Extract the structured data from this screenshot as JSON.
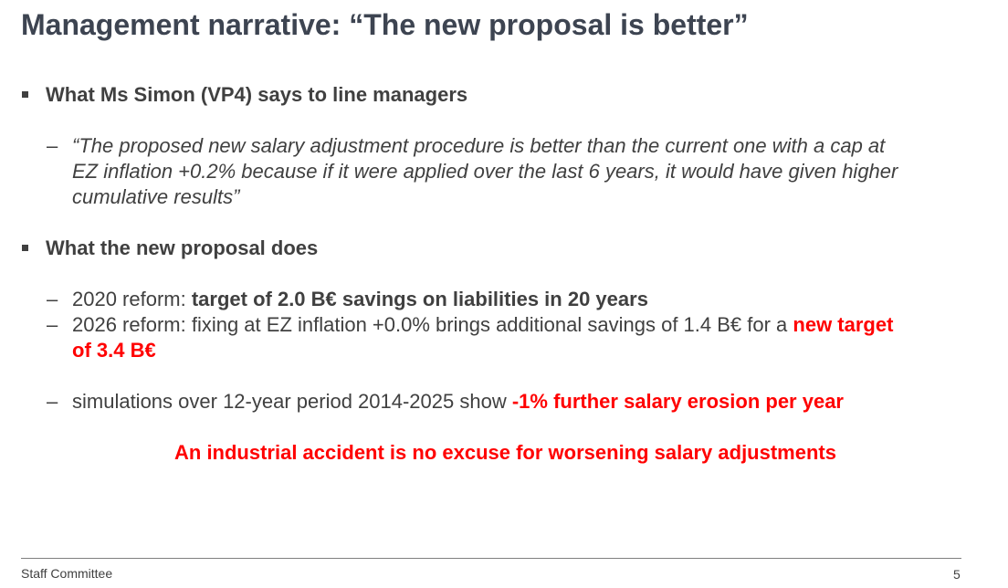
{
  "slide": {
    "title": "Management narrative: “The new proposal is better”"
  },
  "section1": {
    "heading": "What Ms Simon (VP4) says to line managers",
    "quote_lines": [
      "“The proposed new salary adjustment procedure is better than the current one with a cap at",
      "EZ inflation +0.2% because if it were applied over the last 6 years, it would have given higher",
      "cumulative results”"
    ]
  },
  "section2": {
    "heading": "What the new proposal does",
    "item1": {
      "prefix": "2020 reform: ",
      "bold": "target of 2.0 B€ savings on liabilities in 20 years"
    },
    "item2": {
      "prefix": "2026 reform: fixing at EZ inflation +0.0% brings additional savings of 1.4 B€ for a ",
      "highlight_line1": "new target",
      "highlight_line2": "of 3.4 B€"
    },
    "item3": {
      "prefix": "simulations over 12-year period 2014-2025 show ",
      "highlight": "-1% further salary erosion per year"
    }
  },
  "conclusion": "An industrial accident is no excuse for worsening salary adjustments",
  "footer": {
    "organization": "Staff Committee",
    "page_number": "5"
  },
  "colors": {
    "title": "#3d4451",
    "body_text": "#404040",
    "highlight": "#ff0000",
    "rule": "#7f7f7f"
  }
}
